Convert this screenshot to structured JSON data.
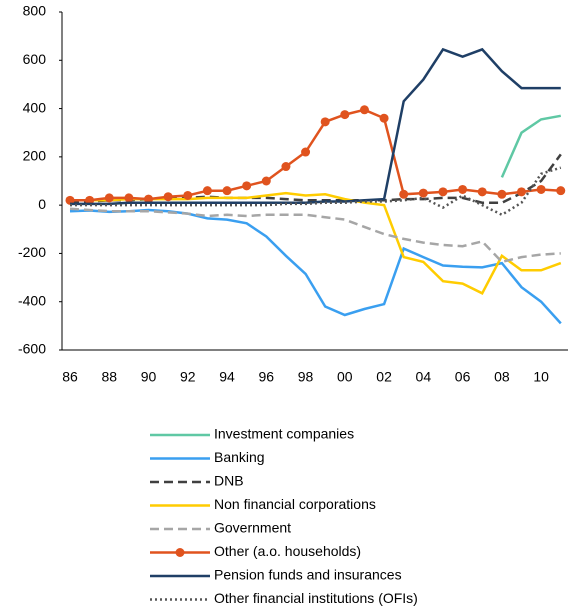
{
  "chart_data": {
    "type": "line",
    "categories": [
      "86",
      null,
      "88",
      null,
      "90",
      null,
      "92",
      null,
      "94",
      null,
      "96",
      null,
      "98",
      null,
      "00",
      null,
      "02",
      null,
      "04",
      null,
      "06",
      null,
      "08",
      null,
      "10",
      null
    ],
    "ylim": [
      -600,
      800
    ],
    "yticks": [
      -600,
      -400,
      -200,
      0,
      200,
      400,
      600,
      800
    ],
    "grid": false,
    "legend": "bottom",
    "series": [
      {
        "name": "Investment companies",
        "color": "#5fc8a4",
        "dash": "solid",
        "marker": false,
        "values": [
          null,
          null,
          null,
          null,
          null,
          null,
          null,
          null,
          null,
          null,
          null,
          null,
          null,
          null,
          null,
          null,
          null,
          null,
          null,
          null,
          null,
          null,
          115,
          300,
          355,
          370
        ]
      },
      {
        "name": "Banking",
        "color": "#3a9ff0",
        "dash": "solid",
        "marker": false,
        "values": [
          -25,
          -22,
          -28,
          -25,
          -20,
          -25,
          -35,
          -55,
          -60,
          -75,
          -130,
          -210,
          -285,
          -420,
          -455,
          -430,
          -410,
          -180,
          -215,
          -250,
          -255,
          -258,
          -240,
          -340,
          -400,
          -490
        ]
      },
      {
        "name": "DNB",
        "color": "#404040",
        "dash": "dashed",
        "marker": false,
        "values": [
          10,
          15,
          20,
          20,
          25,
          30,
          30,
          35,
          30,
          30,
          30,
          25,
          20,
          20,
          20,
          20,
          20,
          25,
          25,
          30,
          30,
          10,
          10,
          50,
          100,
          210
        ]
      },
      {
        "name": "Non financial corporations",
        "color": "#ffcc00",
        "dash": "solid",
        "marker": false,
        "values": [
          20,
          20,
          20,
          25,
          25,
          25,
          25,
          30,
          30,
          30,
          40,
          50,
          40,
          45,
          25,
          10,
          0,
          -215,
          -235,
          -315,
          -325,
          -365,
          -210,
          -270,
          -270,
          -240
        ]
      },
      {
        "name": "Government",
        "color": "#a6a6a6",
        "dash": "dashed",
        "marker": false,
        "values": [
          -15,
          -20,
          -25,
          -25,
          -25,
          -30,
          -35,
          -45,
          -40,
          -45,
          -40,
          -40,
          -40,
          -50,
          -60,
          -90,
          -120,
          -140,
          -155,
          -165,
          -170,
          -150,
          -235,
          -215,
          -205,
          -200
        ]
      },
      {
        "name": "Other (a.o. households)",
        "color": "#e0531e",
        "dash": "solid",
        "marker": true,
        "values": [
          20,
          20,
          30,
          30,
          25,
          35,
          40,
          60,
          60,
          80,
          100,
          160,
          220,
          345,
          375,
          395,
          360,
          45,
          50,
          55,
          65,
          55,
          45,
          55,
          65,
          60
        ]
      },
      {
        "name": "Pension funds and insurances",
        "color": "#1f3f66",
        "dash": "solid",
        "marker": false,
        "values": [
          5,
          5,
          5,
          10,
          10,
          10,
          10,
          10,
          10,
          10,
          10,
          10,
          10,
          15,
          15,
          20,
          25,
          430,
          520,
          645,
          615,
          645,
          555,
          485,
          485,
          485
        ]
      },
      {
        "name": "Other financial institutions (OFIs)",
        "color": "#555555",
        "dash": "dotted",
        "marker": false,
        "values": [
          0,
          0,
          0,
          0,
          0,
          0,
          0,
          0,
          0,
          0,
          0,
          5,
          5,
          10,
          10,
          15,
          15,
          20,
          30,
          -10,
          40,
          0,
          -40,
          10,
          130,
          155
        ]
      }
    ]
  }
}
